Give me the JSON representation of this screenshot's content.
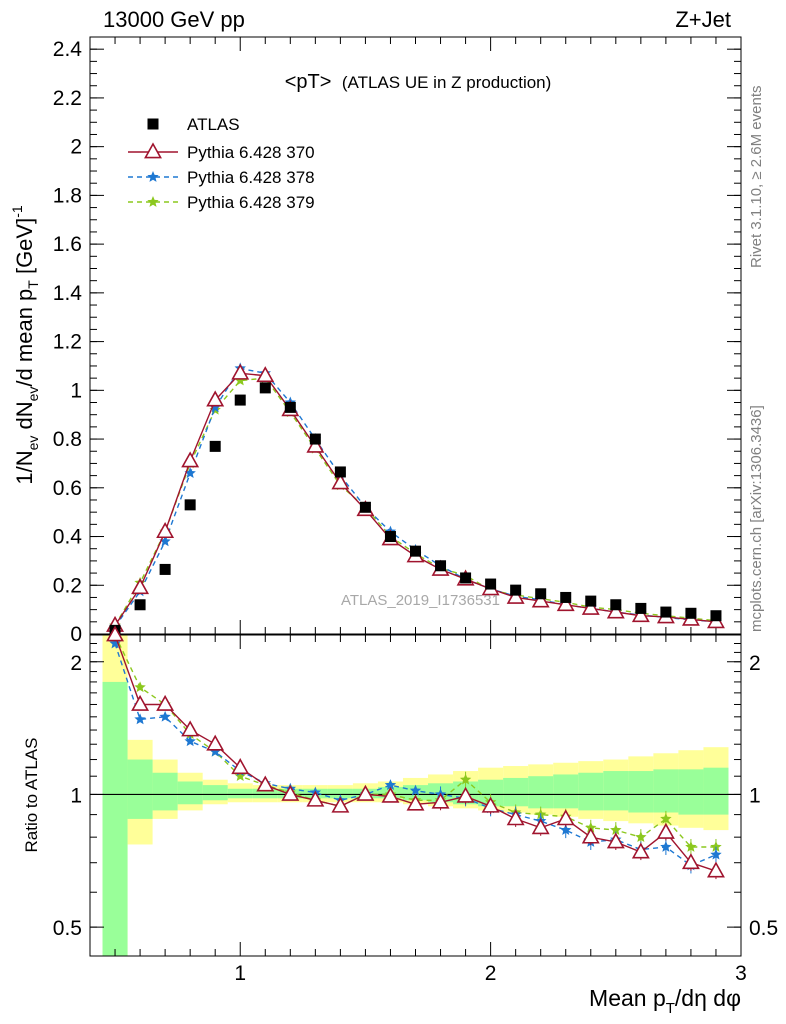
{
  "header": {
    "left": "13000 GeV pp",
    "right": "Z+Jet"
  },
  "side_texts": {
    "rivet": "Rivet 3.1.10, ≥ 2.6M events",
    "mcplots": "mcplots.cern.ch [arXiv:1306.3436]"
  },
  "watermark": "ATLAS_2019_I1736531",
  "chart_data": [
    {
      "type": "scatter",
      "panel": "main",
      "title": "<pT> (ATLAS UE in Z production)",
      "title_main": "<pT>",
      "title_sub": "(ATLAS UE in Z production)",
      "ylabel": "1/N_ev dN_ev/d mean p_T [GeV]^-1",
      "xlim": [
        0.4,
        3.0
      ],
      "ylim": [
        0,
        2.45
      ],
      "xticks": [
        1,
        2,
        3
      ],
      "yticks": [
        0,
        0.2,
        0.4,
        0.6,
        0.8,
        1,
        1.2,
        1.4,
        1.6,
        1.8,
        2,
        2.2,
        2.4
      ],
      "ytick_labels": [
        "0",
        "0.2",
        "0.4",
        "0.6",
        "0.8",
        "1",
        "1.2",
        "1.4",
        "1.6",
        "1.8",
        "2",
        "2.2",
        "2.4"
      ],
      "legend_position": "top-left",
      "x": [
        0.5,
        0.6,
        0.7,
        0.8,
        0.9,
        1.0,
        1.1,
        1.2,
        1.3,
        1.4,
        1.5,
        1.6,
        1.7,
        1.8,
        1.9,
        2.0,
        2.1,
        2.2,
        2.3,
        2.4,
        2.5,
        2.6,
        2.7,
        2.8,
        2.9
      ],
      "series": [
        {
          "name": "ATLAS",
          "color": "#000000",
          "marker": "square",
          "values": [
            0.015,
            0.12,
            0.265,
            0.53,
            0.77,
            0.96,
            1.01,
            0.93,
            0.8,
            0.665,
            0.52,
            0.4,
            0.34,
            0.28,
            0.23,
            0.205,
            0.18,
            0.165,
            0.15,
            0.135,
            0.12,
            0.105,
            0.09,
            0.085,
            0.075
          ]
        },
        {
          "name": "Pythia 6.428 370",
          "color": "#a0142e",
          "marker": "triangle-open",
          "line": "solid",
          "values": [
            0.035,
            0.19,
            0.42,
            0.71,
            0.96,
            1.07,
            1.06,
            0.92,
            0.77,
            0.62,
            0.51,
            0.39,
            0.32,
            0.265,
            0.225,
            0.185,
            0.15,
            0.135,
            0.12,
            0.105,
            0.09,
            0.075,
            0.07,
            0.06,
            0.05
          ]
        },
        {
          "name": "Pythia 6.428 378",
          "color": "#1e78d2",
          "marker": "star",
          "line": "dashed",
          "values": [
            0.03,
            0.175,
            0.38,
            0.66,
            0.93,
            1.09,
            1.07,
            0.95,
            0.8,
            0.65,
            0.52,
            0.42,
            0.345,
            0.28,
            0.225,
            0.185,
            0.155,
            0.14,
            0.12,
            0.105,
            0.09,
            0.078,
            0.068,
            0.058,
            0.05
          ]
        },
        {
          "name": "Pythia 6.428 379",
          "color": "#8cc81e",
          "marker": "star",
          "line": "dashed",
          "values": [
            0.035,
            0.21,
            0.42,
            0.7,
            0.92,
            1.04,
            1.05,
            0.91,
            0.76,
            0.61,
            0.52,
            0.4,
            0.33,
            0.27,
            0.24,
            0.18,
            0.16,
            0.145,
            0.13,
            0.11,
            0.1,
            0.085,
            0.075,
            0.065,
            0.055
          ]
        }
      ]
    },
    {
      "type": "scatter",
      "panel": "ratio",
      "ylabel": "Ratio to ATLAS",
      "xlabel": "Mean p_T/dη dφ",
      "xlim": [
        0.4,
        3.0
      ],
      "ylim": [
        0.43,
        2.3
      ],
      "log_y": true,
      "xticks": [
        1,
        2,
        3
      ],
      "xtick_labels": [
        "1",
        "2",
        "3"
      ],
      "yticks": [
        0.5,
        1,
        2
      ],
      "ytick_labels": [
        "0.5",
        "1",
        "2"
      ],
      "x": [
        0.5,
        0.6,
        0.7,
        0.8,
        0.9,
        1.0,
        1.1,
        1.2,
        1.3,
        1.4,
        1.5,
        1.6,
        1.7,
        1.8,
        1.9,
        2.0,
        2.1,
        2.2,
        2.3,
        2.4,
        2.5,
        2.6,
        2.7,
        2.8,
        2.9
      ],
      "bands": {
        "x_edges": [
          0.45,
          0.55,
          0.65,
          0.75,
          0.85,
          0.95,
          1.05,
          1.15,
          1.25,
          1.35,
          1.45,
          1.55,
          1.65,
          1.75,
          1.85,
          1.95,
          2.05,
          2.15,
          2.25,
          2.35,
          2.45,
          2.55,
          2.65,
          2.75,
          2.85,
          2.95
        ],
        "outer": {
          "color": "#ffff99",
          "low": [
            0.3,
            0.77,
            0.88,
            0.92,
            0.95,
            0.96,
            0.96,
            0.96,
            0.96,
            0.96,
            0.96,
            0.96,
            0.95,
            0.94,
            0.93,
            0.92,
            0.91,
            0.9,
            0.89,
            0.88,
            0.87,
            0.86,
            0.85,
            0.84,
            0.83
          ],
          "high": [
            2.5,
            1.33,
            1.2,
            1.12,
            1.08,
            1.06,
            1.05,
            1.05,
            1.05,
            1.05,
            1.06,
            1.07,
            1.09,
            1.11,
            1.13,
            1.15,
            1.16,
            1.17,
            1.18,
            1.19,
            1.2,
            1.22,
            1.24,
            1.26,
            1.28
          ]
        },
        "inner": {
          "color": "#99ff99",
          "low": [
            0.3,
            0.88,
            0.92,
            0.95,
            0.97,
            0.98,
            0.98,
            0.98,
            0.98,
            0.98,
            0.98,
            0.98,
            0.97,
            0.96,
            0.95,
            0.94,
            0.94,
            0.93,
            0.93,
            0.92,
            0.92,
            0.91,
            0.91,
            0.9,
            0.9
          ],
          "high": [
            1.8,
            1.2,
            1.12,
            1.07,
            1.05,
            1.03,
            1.03,
            1.03,
            1.03,
            1.03,
            1.03,
            1.04,
            1.05,
            1.06,
            1.07,
            1.08,
            1.09,
            1.1,
            1.11,
            1.12,
            1.13,
            1.13,
            1.14,
            1.14,
            1.15
          ]
        }
      },
      "series": [
        {
          "name": "Pythia 6.428 370",
          "color": "#a0142e",
          "marker": "triangle-open",
          "line": "solid",
          "values": [
            2.3,
            1.6,
            1.6,
            1.4,
            1.3,
            1.15,
            1.05,
            1.0,
            0.97,
            0.94,
            1.0,
            0.99,
            0.95,
            0.96,
            0.99,
            0.94,
            0.88,
            0.84,
            0.88,
            0.8,
            0.78,
            0.74,
            0.82,
            0.7,
            0.67
          ]
        },
        {
          "name": "Pythia 6.428 378",
          "color": "#1e78d2",
          "marker": "star",
          "line": "dashed",
          "values": [
            2.2,
            1.48,
            1.5,
            1.32,
            1.25,
            1.13,
            1.06,
            1.03,
            1.01,
            0.97,
            1.0,
            1.05,
            1.02,
            1.0,
            0.98,
            0.93,
            0.9,
            0.87,
            0.83,
            0.78,
            0.79,
            0.75,
            0.76,
            0.69,
            0.73
          ]
        },
        {
          "name": "Pythia 6.428 379",
          "color": "#8cc81e",
          "marker": "star",
          "line": "dashed",
          "values": [
            2.35,
            1.75,
            1.6,
            1.37,
            1.25,
            1.1,
            1.05,
            1.01,
            0.97,
            0.94,
            1.0,
            1.0,
            0.97,
            0.97,
            1.08,
            0.96,
            0.91,
            0.9,
            0.89,
            0.84,
            0.83,
            0.8,
            0.88,
            0.76,
            0.76
          ]
        }
      ]
    }
  ]
}
